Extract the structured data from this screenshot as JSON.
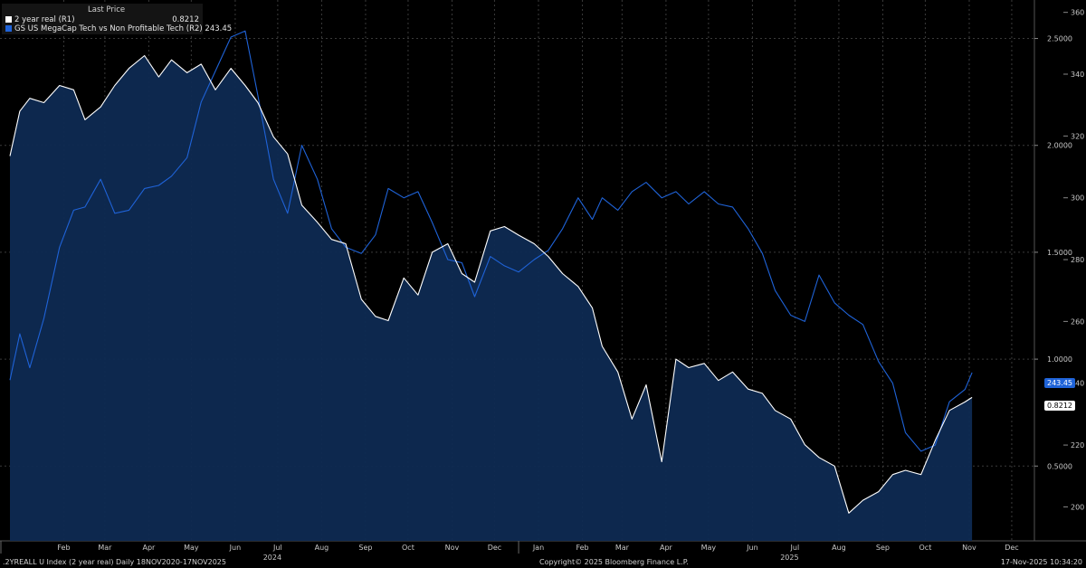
{
  "legend": {
    "header": "Last Price",
    "items": [
      {
        "label": "2 year real  (R1)",
        "value": "0.8212",
        "color": "#ffffff"
      },
      {
        "label": "GS US MegaCap Tech vs Non Profitable Tech  (R2) 243.45",
        "value": "",
        "color": "#1f63d8"
      }
    ]
  },
  "last_value_tags": {
    "r1": "0.8212",
    "r2": "243.45"
  },
  "footer": {
    "left": ".2YREALL U Index (2 year real) Daily 18NOV2020-17NOV2025",
    "center": "Copyright© 2025 Bloomberg Finance L.P.",
    "right": "17-Nov-2025 10:34:20"
  },
  "chart_data": {
    "type": "line",
    "grid": true,
    "x_ticks": [
      "Feb",
      "Mar",
      "Apr",
      "May",
      "Jun",
      "Jul",
      "Aug",
      "Sep",
      "Oct",
      "Nov",
      "Dec",
      "Jan",
      "Feb",
      "Mar",
      "Apr",
      "May",
      "Jun",
      "Jul",
      "Aug",
      "Sep",
      "Oct",
      "Nov",
      "Dec"
    ],
    "year_labels": [
      "2024",
      "2025"
    ],
    "axes": {
      "r1": {
        "ticks": [
          "0.5000",
          "1.0000",
          "1.5000",
          "2.0000",
          "2.5000"
        ],
        "ylim": [
          0.15,
          2.68
        ]
      },
      "r2": {
        "ticks": [
          "200",
          "220",
          "240",
          "260",
          "280",
          "300",
          "320",
          "340",
          "360"
        ],
        "ylim": [
          189,
          364
        ]
      }
    },
    "series": [
      {
        "name": "2 year real  (R1)",
        "axis": "r1",
        "color": "#ffffff",
        "fill": true,
        "points": [
          [
            "2024-01-08",
            1.95
          ],
          [
            "2024-01-15",
            2.16
          ],
          [
            "2024-01-22",
            2.22
          ],
          [
            "2024-02-01",
            2.2
          ],
          [
            "2024-02-12",
            2.28
          ],
          [
            "2024-02-22",
            2.26
          ],
          [
            "2024-03-01",
            2.12
          ],
          [
            "2024-03-12",
            2.18
          ],
          [
            "2024-03-22",
            2.28
          ],
          [
            "2024-04-01",
            2.36
          ],
          [
            "2024-04-12",
            2.42
          ],
          [
            "2024-04-22",
            2.32
          ],
          [
            "2024-05-01",
            2.4
          ],
          [
            "2024-05-12",
            2.34
          ],
          [
            "2024-05-22",
            2.38
          ],
          [
            "2024-06-01",
            2.26
          ],
          [
            "2024-06-12",
            2.36
          ],
          [
            "2024-06-22",
            2.28
          ],
          [
            "2024-07-01",
            2.2
          ],
          [
            "2024-07-12",
            2.04
          ],
          [
            "2024-07-22",
            1.96
          ],
          [
            "2024-08-01",
            1.72
          ],
          [
            "2024-08-12",
            1.64
          ],
          [
            "2024-08-22",
            1.56
          ],
          [
            "2024-09-01",
            1.54
          ],
          [
            "2024-09-12",
            1.28
          ],
          [
            "2024-09-22",
            1.2
          ],
          [
            "2024-10-01",
            1.18
          ],
          [
            "2024-10-12",
            1.38
          ],
          [
            "2024-10-22",
            1.3
          ],
          [
            "2024-11-01",
            1.5
          ],
          [
            "2024-11-12",
            1.54
          ],
          [
            "2024-11-22",
            1.4
          ],
          [
            "2024-12-01",
            1.36
          ],
          [
            "2024-12-12",
            1.6
          ],
          [
            "2024-12-22",
            1.62
          ],
          [
            "2025-01-01",
            1.58
          ],
          [
            "2025-01-12",
            1.54
          ],
          [
            "2025-01-22",
            1.48
          ],
          [
            "2025-02-01",
            1.4
          ],
          [
            "2025-02-12",
            1.34
          ],
          [
            "2025-02-22",
            1.24
          ],
          [
            "2025-03-01",
            1.06
          ],
          [
            "2025-03-12",
            0.94
          ],
          [
            "2025-03-22",
            0.72
          ],
          [
            "2025-04-01",
            0.88
          ],
          [
            "2025-04-12",
            0.52
          ],
          [
            "2025-04-22",
            1.0
          ],
          [
            "2025-05-01",
            0.96
          ],
          [
            "2025-05-12",
            0.98
          ],
          [
            "2025-05-22",
            0.9
          ],
          [
            "2025-06-01",
            0.94
          ],
          [
            "2025-06-12",
            0.86
          ],
          [
            "2025-06-22",
            0.84
          ],
          [
            "2025-07-01",
            0.76
          ],
          [
            "2025-07-12",
            0.72
          ],
          [
            "2025-07-22",
            0.6
          ],
          [
            "2025-08-01",
            0.54
          ],
          [
            "2025-08-12",
            0.5
          ],
          [
            "2025-08-22",
            0.28
          ],
          [
            "2025-09-01",
            0.34
          ],
          [
            "2025-09-12",
            0.38
          ],
          [
            "2025-09-22",
            0.46
          ],
          [
            "2025-10-01",
            0.48
          ],
          [
            "2025-10-12",
            0.46
          ],
          [
            "2025-10-22",
            0.62
          ],
          [
            "2025-11-01",
            0.76
          ],
          [
            "2025-11-12",
            0.8
          ],
          [
            "2025-11-17",
            0.8212
          ]
        ]
      },
      {
        "name": "GS US MegaCap Tech vs Non Profitable Tech  (R2) 243.45",
        "axis": "r2",
        "color": "#1f63d8",
        "fill": false,
        "points": [
          [
            "2024-01-08",
            241
          ],
          [
            "2024-01-15",
            256
          ],
          [
            "2024-01-22",
            245
          ],
          [
            "2024-02-01",
            261
          ],
          [
            "2024-02-12",
            284
          ],
          [
            "2024-02-22",
            296
          ],
          [
            "2024-03-01",
            297
          ],
          [
            "2024-03-12",
            306
          ],
          [
            "2024-03-22",
            295
          ],
          [
            "2024-04-01",
            296
          ],
          [
            "2024-04-12",
            303
          ],
          [
            "2024-04-22",
            304
          ],
          [
            "2024-05-01",
            307
          ],
          [
            "2024-05-12",
            313
          ],
          [
            "2024-05-22",
            331
          ],
          [
            "2024-06-01",
            341
          ],
          [
            "2024-06-12",
            352
          ],
          [
            "2024-06-22",
            354
          ],
          [
            "2024-07-01",
            333
          ],
          [
            "2024-07-12",
            306
          ],
          [
            "2024-07-22",
            295
          ],
          [
            "2024-08-01",
            317
          ],
          [
            "2024-08-12",
            306
          ],
          [
            "2024-08-22",
            290
          ],
          [
            "2024-09-01",
            284
          ],
          [
            "2024-09-12",
            282
          ],
          [
            "2024-09-22",
            288
          ],
          [
            "2024-10-01",
            303
          ],
          [
            "2024-10-12",
            300
          ],
          [
            "2024-10-22",
            302
          ],
          [
            "2024-11-01",
            292
          ],
          [
            "2024-11-12",
            280
          ],
          [
            "2024-11-22",
            279
          ],
          [
            "2024-12-01",
            268
          ],
          [
            "2024-12-12",
            281
          ],
          [
            "2024-12-22",
            278
          ],
          [
            "2025-01-01",
            276
          ],
          [
            "2025-01-12",
            280
          ],
          [
            "2025-01-22",
            283
          ],
          [
            "2025-02-01",
            290
          ],
          [
            "2025-02-12",
            300
          ],
          [
            "2025-02-22",
            293
          ],
          [
            "2025-03-01",
            300
          ],
          [
            "2025-03-12",
            296
          ],
          [
            "2025-03-22",
            302
          ],
          [
            "2025-04-01",
            305
          ],
          [
            "2025-04-12",
            300
          ],
          [
            "2025-04-22",
            302
          ],
          [
            "2025-05-01",
            298
          ],
          [
            "2025-05-12",
            302
          ],
          [
            "2025-05-22",
            298
          ],
          [
            "2025-06-01",
            297
          ],
          [
            "2025-06-12",
            290
          ],
          [
            "2025-06-22",
            282
          ],
          [
            "2025-07-01",
            270
          ],
          [
            "2025-07-12",
            262
          ],
          [
            "2025-07-22",
            260
          ],
          [
            "2025-08-01",
            275
          ],
          [
            "2025-08-12",
            266
          ],
          [
            "2025-08-22",
            262
          ],
          [
            "2025-09-01",
            259
          ],
          [
            "2025-09-12",
            247
          ],
          [
            "2025-09-22",
            240
          ],
          [
            "2025-10-01",
            224
          ],
          [
            "2025-10-12",
            218
          ],
          [
            "2025-10-22",
            220
          ],
          [
            "2025-11-01",
            234
          ],
          [
            "2025-11-12",
            238
          ],
          [
            "2025-11-17",
            243.45
          ]
        ]
      }
    ]
  }
}
